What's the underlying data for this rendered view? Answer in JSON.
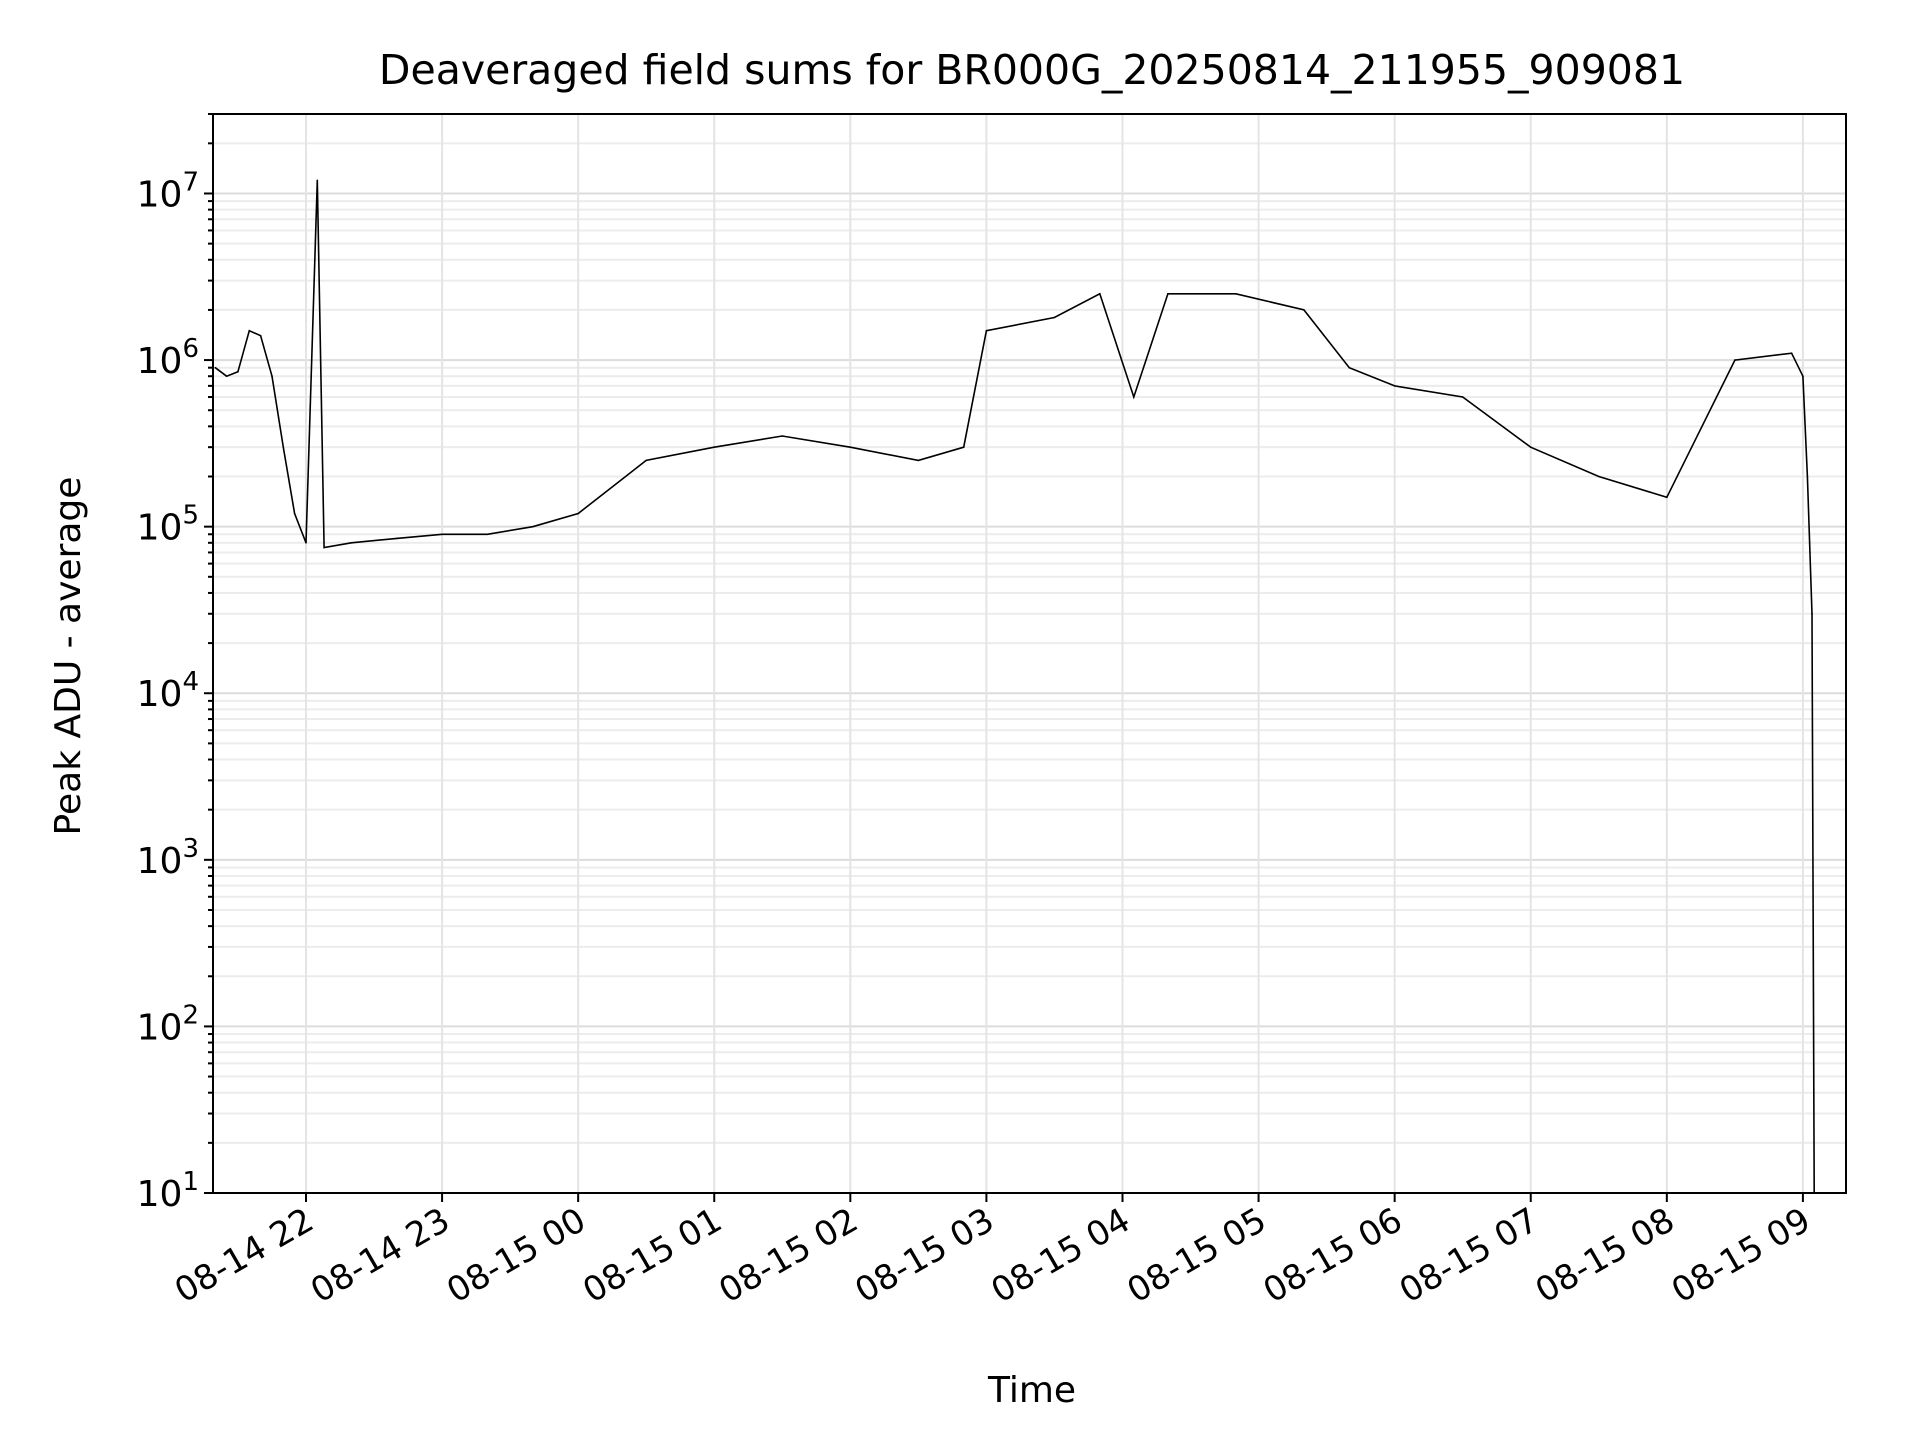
{
  "chart_data": {
    "type": "line",
    "title": "Deaveraged field sums for BR000G_20250814_211955_909081",
    "xlabel": "Time",
    "ylabel": "Peak ADU - average",
    "yscale": "log",
    "ylim": [
      10,
      30000000
    ],
    "xlim": [
      "2025-08-14 21:19",
      "2025-08-15 09:19"
    ],
    "grid": true,
    "line_color": "#000000",
    "y_tick_labels": [
      {
        "value": 10,
        "base": "10",
        "exp": "1"
      },
      {
        "value": 100,
        "base": "10",
        "exp": "2"
      },
      {
        "value": 1000,
        "base": "10",
        "exp": "3"
      },
      {
        "value": 10000,
        "base": "10",
        "exp": "4"
      },
      {
        "value": 100000,
        "base": "10",
        "exp": "5"
      },
      {
        "value": 1000000,
        "base": "10",
        "exp": "6"
      },
      {
        "value": 10000000,
        "base": "10",
        "exp": "7"
      }
    ],
    "x_ticks": [
      {
        "time": "2025-08-14 22:00",
        "label": "08-14 22"
      },
      {
        "time": "2025-08-14 23:00",
        "label": "08-14 23"
      },
      {
        "time": "2025-08-15 00:00",
        "label": "08-15 00"
      },
      {
        "time": "2025-08-15 01:00",
        "label": "08-15 01"
      },
      {
        "time": "2025-08-15 02:00",
        "label": "08-15 02"
      },
      {
        "time": "2025-08-15 03:00",
        "label": "08-15 03"
      },
      {
        "time": "2025-08-15 04:00",
        "label": "08-15 04"
      },
      {
        "time": "2025-08-15 05:00",
        "label": "08-15 05"
      },
      {
        "time": "2025-08-15 06:00",
        "label": "08-15 06"
      },
      {
        "time": "2025-08-15 07:00",
        "label": "08-15 07"
      },
      {
        "time": "2025-08-15 08:00",
        "label": "08-15 08"
      },
      {
        "time": "2025-08-15 09:00",
        "label": "08-15 09"
      }
    ],
    "series": [
      {
        "points": [
          [
            "2025-08-14 21:20",
            900000
          ],
          [
            "2025-08-14 21:25",
            800000
          ],
          [
            "2025-08-14 21:30",
            850000
          ],
          [
            "2025-08-14 21:35",
            1500000
          ],
          [
            "2025-08-14 21:40",
            1400000
          ],
          [
            "2025-08-14 21:45",
            800000
          ],
          [
            "2025-08-14 21:50",
            300000
          ],
          [
            "2025-08-14 21:55",
            120000
          ],
          [
            "2025-08-14 22:00",
            80000
          ],
          [
            "2025-08-14 22:05",
            12000000
          ],
          [
            "2025-08-14 22:08",
            75000
          ],
          [
            "2025-08-14 22:20",
            80000
          ],
          [
            "2025-08-14 22:40",
            85000
          ],
          [
            "2025-08-14 23:00",
            90000
          ],
          [
            "2025-08-14 23:20",
            90000
          ],
          [
            "2025-08-14 23:40",
            100000
          ],
          [
            "2025-08-15 00:00",
            120000
          ],
          [
            "2025-08-15 00:30",
            250000
          ],
          [
            "2025-08-15 01:00",
            300000
          ],
          [
            "2025-08-15 01:30",
            350000
          ],
          [
            "2025-08-15 02:00",
            300000
          ],
          [
            "2025-08-15 02:30",
            250000
          ],
          [
            "2025-08-15 02:50",
            300000
          ],
          [
            "2025-08-15 03:00",
            1500000
          ],
          [
            "2025-08-15 03:30",
            1800000
          ],
          [
            "2025-08-15 03:50",
            2500000
          ],
          [
            "2025-08-15 04:05",
            600000
          ],
          [
            "2025-08-15 04:20",
            2500000
          ],
          [
            "2025-08-15 04:50",
            2500000
          ],
          [
            "2025-08-15 05:20",
            2000000
          ],
          [
            "2025-08-15 05:40",
            900000
          ],
          [
            "2025-08-15 06:00",
            700000
          ],
          [
            "2025-08-15 06:30",
            600000
          ],
          [
            "2025-08-15 07:00",
            300000
          ],
          [
            "2025-08-15 07:30",
            200000
          ],
          [
            "2025-08-15 08:00",
            150000
          ],
          [
            "2025-08-15 08:30",
            1000000
          ],
          [
            "2025-08-15 08:55",
            1100000
          ],
          [
            "2025-08-15 09:00",
            800000
          ],
          [
            "2025-08-15 09:02",
            200000
          ],
          [
            "2025-08-15 09:04",
            30000
          ],
          [
            "2025-08-15 09:05",
            10
          ]
        ]
      }
    ]
  }
}
